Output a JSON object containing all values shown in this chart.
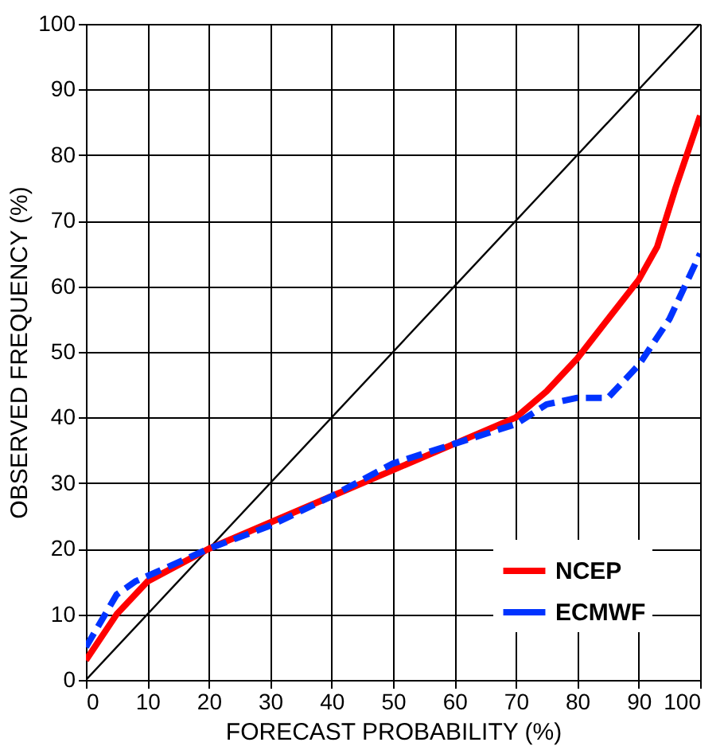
{
  "chart_data": {
    "type": "line",
    "xlabel": "FORECAST PROBABILITY (%)",
    "ylabel": "OBSERVED FREQUENCY (%)",
    "xlim": [
      0,
      100
    ],
    "ylim": [
      0,
      100
    ],
    "xticks": [
      0,
      10,
      20,
      30,
      40,
      50,
      60,
      70,
      80,
      90,
      100
    ],
    "yticks": [
      0,
      10,
      20,
      30,
      40,
      50,
      60,
      70,
      80,
      90,
      100
    ],
    "grid": true,
    "legend": "bottom right",
    "marker": "none",
    "series": [
      {
        "color": "#000000",
        "line_style": "solid",
        "x": [
          0,
          100
        ],
        "values": [
          0,
          100
        ]
      },
      {
        "name": "NCEP",
        "color": "#ff0000",
        "line_style": "solid",
        "x": [
          0,
          5,
          10,
          20,
          30,
          40,
          50,
          60,
          70,
          75,
          80,
          85,
          90,
          93,
          96,
          100
        ],
        "values": [
          3,
          10,
          15,
          20,
          24,
          28,
          32,
          36,
          40,
          44,
          49,
          55,
          61,
          66,
          75,
          86
        ]
      },
      {
        "name": "ECMWF",
        "color": "#0033ff",
        "line_style": "dashed",
        "x": [
          0,
          5,
          8,
          20,
          30,
          40,
          50,
          60,
          70,
          75,
          80,
          85,
          90,
          95,
          100
        ],
        "values": [
          5,
          13,
          15,
          20,
          23.5,
          28,
          33,
          36,
          39,
          42,
          43,
          43,
          48,
          55,
          65
        ]
      }
    ]
  }
}
